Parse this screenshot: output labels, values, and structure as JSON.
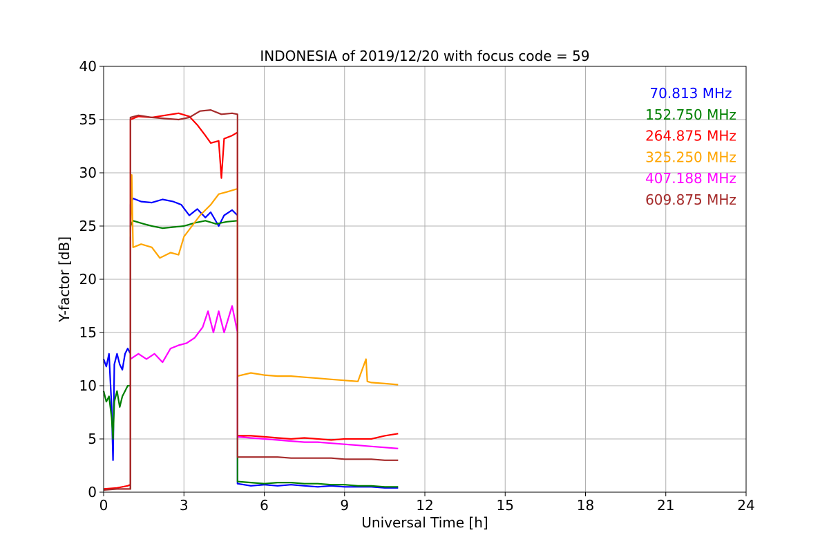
{
  "chart_data": {
    "type": "line",
    "title": "INDONESIA of 2019/12/20 with focus code = 59",
    "xlabel": "Universal Time [h]",
    "ylabel": "Y-factor [dB]",
    "xlim": [
      0,
      24
    ],
    "ylim": [
      0,
      40
    ],
    "xticks": [
      0,
      3,
      6,
      9,
      12,
      15,
      18,
      21,
      24
    ],
    "yticks": [
      0,
      5,
      10,
      15,
      20,
      25,
      30,
      35,
      40
    ],
    "grid": true,
    "legend_position": "top-right",
    "series": [
      {
        "name": "70.813 MHz",
        "color": "#0000ff",
        "points": [
          [
            0,
            12.5
          ],
          [
            0.1,
            11.8
          ],
          [
            0.2,
            13.0
          ],
          [
            0.3,
            8.0
          ],
          [
            0.35,
            3.0
          ],
          [
            0.4,
            12.0
          ],
          [
            0.5,
            13.0
          ],
          [
            0.6,
            12.0
          ],
          [
            0.7,
            11.5
          ],
          [
            0.8,
            13.0
          ],
          [
            0.9,
            13.5
          ],
          [
            1.0,
            13.0
          ],
          [
            1.0,
            0.3
          ],
          [
            1.0,
            27.0
          ],
          [
            1.1,
            27.6
          ],
          [
            1.4,
            27.3
          ],
          [
            1.8,
            27.2
          ],
          [
            2.2,
            27.5
          ],
          [
            2.6,
            27.3
          ],
          [
            2.9,
            27.0
          ],
          [
            3.2,
            26.0
          ],
          [
            3.5,
            26.6
          ],
          [
            3.8,
            25.8
          ],
          [
            4.0,
            26.3
          ],
          [
            4.3,
            25.0
          ],
          [
            4.5,
            26.0
          ],
          [
            4.8,
            26.5
          ],
          [
            5.0,
            26.0
          ],
          [
            5.0,
            0.8
          ],
          [
            5.5,
            0.6
          ],
          [
            6.0,
            0.7
          ],
          [
            6.5,
            0.6
          ],
          [
            7.0,
            0.7
          ],
          [
            7.5,
            0.6
          ],
          [
            8.0,
            0.5
          ],
          [
            8.5,
            0.6
          ],
          [
            9.0,
            0.5
          ],
          [
            9.5,
            0.5
          ],
          [
            10.0,
            0.5
          ],
          [
            10.5,
            0.4
          ],
          [
            11.0,
            0.4
          ]
        ]
      },
      {
        "name": "152.750 MHz",
        "color": "#008000",
        "points": [
          [
            0,
            9.5
          ],
          [
            0.1,
            8.5
          ],
          [
            0.2,
            9.0
          ],
          [
            0.3,
            7.0
          ],
          [
            0.35,
            5.0
          ],
          [
            0.4,
            8.5
          ],
          [
            0.5,
            9.5
          ],
          [
            0.6,
            8.0
          ],
          [
            0.7,
            9.0
          ],
          [
            0.8,
            9.5
          ],
          [
            0.9,
            10.0
          ],
          [
            1.0,
            10.0
          ],
          [
            1.0,
            0.3
          ],
          [
            1.0,
            25.0
          ],
          [
            1.1,
            25.5
          ],
          [
            1.5,
            25.2
          ],
          [
            1.8,
            25.0
          ],
          [
            2.2,
            24.8
          ],
          [
            2.6,
            24.9
          ],
          [
            3.0,
            25.0
          ],
          [
            3.4,
            25.3
          ],
          [
            3.8,
            25.5
          ],
          [
            4.2,
            25.2
          ],
          [
            4.6,
            25.4
          ],
          [
            5.0,
            25.5
          ],
          [
            5.0,
            1.0
          ],
          [
            5.5,
            0.9
          ],
          [
            6.0,
            0.8
          ],
          [
            6.5,
            0.9
          ],
          [
            7.0,
            0.9
          ],
          [
            7.5,
            0.8
          ],
          [
            8.0,
            0.8
          ],
          [
            8.5,
            0.7
          ],
          [
            9.0,
            0.7
          ],
          [
            9.5,
            0.6
          ],
          [
            9.8,
            0.6
          ],
          [
            10.0,
            0.6
          ],
          [
            10.5,
            0.5
          ],
          [
            11.0,
            0.5
          ]
        ]
      },
      {
        "name": "264.875 MHz",
        "color": "#ff0000",
        "points": [
          [
            0,
            0.3
          ],
          [
            0.5,
            0.4
          ],
          [
            0.9,
            0.6
          ],
          [
            1.0,
            0.7
          ],
          [
            1.0,
            35.0
          ],
          [
            1.3,
            35.3
          ],
          [
            1.8,
            35.2
          ],
          [
            2.3,
            35.4
          ],
          [
            2.8,
            35.6
          ],
          [
            3.2,
            35.3
          ],
          [
            3.5,
            34.5
          ],
          [
            3.8,
            33.5
          ],
          [
            4.0,
            32.8
          ],
          [
            4.3,
            33.0
          ],
          [
            4.4,
            29.5
          ],
          [
            4.5,
            33.2
          ],
          [
            4.8,
            33.5
          ],
          [
            5.0,
            33.8
          ],
          [
            5.0,
            5.3
          ],
          [
            5.5,
            5.3
          ],
          [
            6.0,
            5.2
          ],
          [
            6.5,
            5.1
          ],
          [
            7.0,
            5.0
          ],
          [
            7.5,
            5.1
          ],
          [
            8.0,
            5.0
          ],
          [
            8.5,
            4.9
          ],
          [
            9.0,
            5.0
          ],
          [
            9.5,
            5.0
          ],
          [
            10.0,
            5.0
          ],
          [
            10.5,
            5.3
          ],
          [
            11.0,
            5.5
          ]
        ]
      },
      {
        "name": "325.250 MHz",
        "color": "#ffa500",
        "points": [
          [
            1.0,
            24.0
          ],
          [
            1.05,
            29.8
          ],
          [
            1.1,
            23.0
          ],
          [
            1.4,
            23.3
          ],
          [
            1.8,
            23.0
          ],
          [
            2.1,
            22.0
          ],
          [
            2.5,
            22.5
          ],
          [
            2.8,
            22.3
          ],
          [
            3.0,
            24.0
          ],
          [
            3.3,
            25.0
          ],
          [
            3.6,
            26.0
          ],
          [
            4.0,
            27.0
          ],
          [
            4.3,
            28.0
          ],
          [
            4.6,
            28.2
          ],
          [
            5.0,
            28.5
          ],
          [
            5.0,
            10.9
          ],
          [
            5.5,
            11.2
          ],
          [
            6.0,
            11.0
          ],
          [
            6.5,
            10.9
          ],
          [
            7.0,
            10.9
          ],
          [
            7.5,
            10.8
          ],
          [
            8.0,
            10.7
          ],
          [
            8.5,
            10.6
          ],
          [
            9.0,
            10.5
          ],
          [
            9.5,
            10.4
          ],
          [
            9.8,
            12.5
          ],
          [
            9.85,
            10.4
          ],
          [
            10.0,
            10.3
          ],
          [
            10.5,
            10.2
          ],
          [
            11.0,
            10.1
          ]
        ]
      },
      {
        "name": "407.188 MHz",
        "color": "#ff00ff",
        "points": [
          [
            1.0,
            12.5
          ],
          [
            1.3,
            13.0
          ],
          [
            1.6,
            12.5
          ],
          [
            1.9,
            13.0
          ],
          [
            2.2,
            12.2
          ],
          [
            2.5,
            13.5
          ],
          [
            2.8,
            13.8
          ],
          [
            3.1,
            14.0
          ],
          [
            3.4,
            14.5
          ],
          [
            3.7,
            15.5
          ],
          [
            3.9,
            17.0
          ],
          [
            4.1,
            15.0
          ],
          [
            4.3,
            17.0
          ],
          [
            4.5,
            15.0
          ],
          [
            4.8,
            17.5
          ],
          [
            5.0,
            15.0
          ],
          [
            5.0,
            5.2
          ],
          [
            5.5,
            5.1
          ],
          [
            6.0,
            5.0
          ],
          [
            6.5,
            4.9
          ],
          [
            7.0,
            4.8
          ],
          [
            7.5,
            4.7
          ],
          [
            8.0,
            4.7
          ],
          [
            8.5,
            4.6
          ],
          [
            9.0,
            4.5
          ],
          [
            9.5,
            4.4
          ],
          [
            10.0,
            4.3
          ],
          [
            10.5,
            4.2
          ],
          [
            11.0,
            4.1
          ]
        ]
      },
      {
        "name": "609.875 MHz",
        "color": "#a52a2a",
        "points": [
          [
            0,
            0.2
          ],
          [
            0.5,
            0.3
          ],
          [
            0.9,
            0.3
          ],
          [
            1.0,
            0.3
          ],
          [
            1.0,
            35.2
          ],
          [
            1.3,
            35.4
          ],
          [
            1.8,
            35.2
          ],
          [
            2.3,
            35.1
          ],
          [
            2.8,
            35.0
          ],
          [
            3.2,
            35.2
          ],
          [
            3.6,
            35.8
          ],
          [
            4.0,
            35.9
          ],
          [
            4.4,
            35.5
          ],
          [
            4.8,
            35.6
          ],
          [
            5.0,
            35.5
          ],
          [
            5.0,
            3.3
          ],
          [
            5.5,
            3.3
          ],
          [
            6.0,
            3.3
          ],
          [
            6.5,
            3.3
          ],
          [
            7.0,
            3.2
          ],
          [
            7.5,
            3.2
          ],
          [
            8.0,
            3.2
          ],
          [
            8.5,
            3.2
          ],
          [
            9.0,
            3.1
          ],
          [
            9.5,
            3.1
          ],
          [
            10.0,
            3.1
          ],
          [
            10.5,
            3.0
          ],
          [
            11.0,
            3.0
          ]
        ]
      }
    ]
  }
}
